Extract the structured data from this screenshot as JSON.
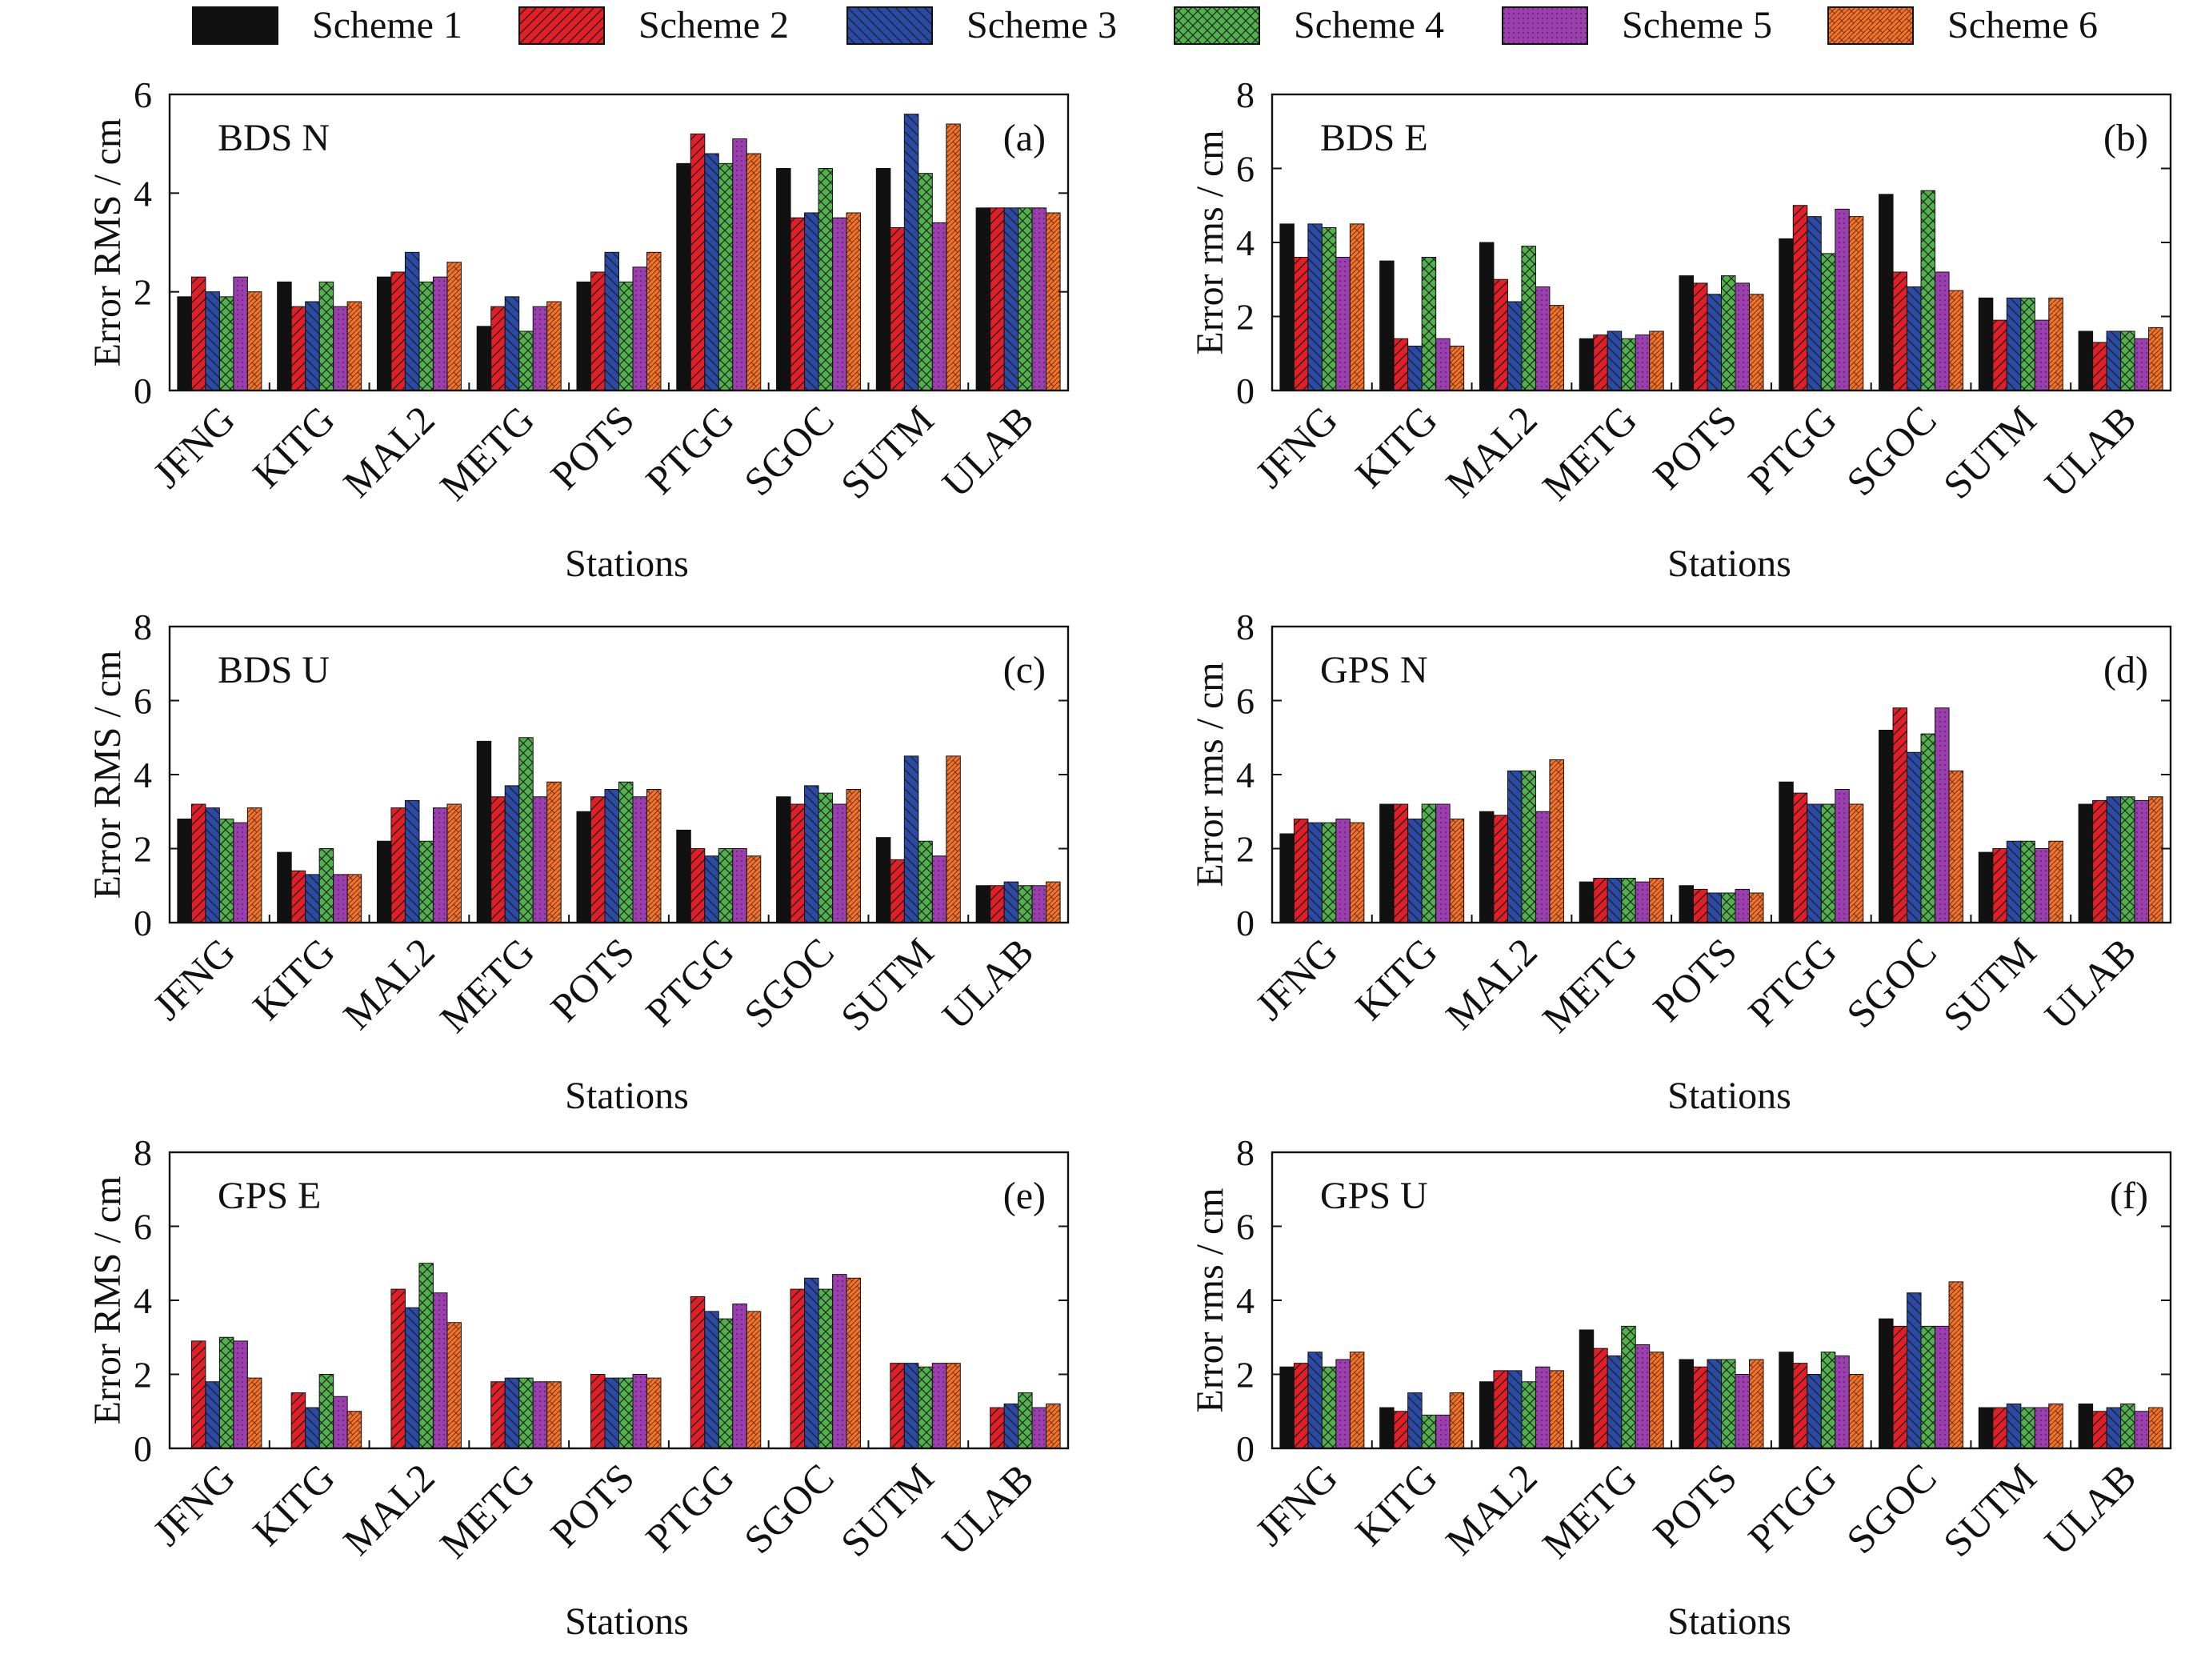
{
  "stations": [
    "JFNG",
    "KITG",
    "MAL2",
    "METG",
    "POTS",
    "PTGG",
    "SGOC",
    "SUTM",
    "ULAB"
  ],
  "legend": [
    {
      "name": "Scheme 1",
      "color": "#111111",
      "pattern": "solid"
    },
    {
      "name": "Scheme 2",
      "color": "#e41e26",
      "pattern": "hatch-diagonal-right"
    },
    {
      "name": "Scheme 3",
      "color": "#2a4aa8",
      "pattern": "hatch-diagonal-left"
    },
    {
      "name": "Scheme 4",
      "color": "#4fb24a",
      "pattern": "crosshatch"
    },
    {
      "name": "Scheme 5",
      "color": "#9b3fae",
      "pattern": "dots"
    },
    {
      "name": "Scheme 6",
      "color": "#f0752a",
      "pattern": "brick"
    }
  ],
  "chart_data": [
    {
      "type": "bar",
      "panel_label": "(a)",
      "title": "BDS N",
      "xlabel": "Stations",
      "ylabel": "Error RMS / cm",
      "ylim": [
        0,
        6
      ],
      "yticks": [
        "0",
        "2",
        "4",
        "6"
      ],
      "categories": [
        "JFNG",
        "KITG",
        "MAL2",
        "METG",
        "POTS",
        "PTGG",
        "SGOC",
        "SUTM",
        "ULAB"
      ],
      "series": [
        {
          "name": "Scheme 1",
          "values": [
            1.9,
            2.2,
            2.3,
            1.3,
            2.2,
            4.6,
            4.5,
            4.5,
            3.7
          ]
        },
        {
          "name": "Scheme 2",
          "values": [
            2.3,
            1.7,
            2.4,
            1.7,
            2.4,
            5.2,
            3.5,
            3.3,
            3.7
          ]
        },
        {
          "name": "Scheme 3",
          "values": [
            2.0,
            1.8,
            2.8,
            1.9,
            2.8,
            4.8,
            3.6,
            5.6,
            3.7
          ]
        },
        {
          "name": "Scheme 4",
          "values": [
            1.9,
            2.2,
            2.2,
            1.2,
            2.2,
            4.6,
            4.5,
            4.4,
            3.7
          ]
        },
        {
          "name": "Scheme 5",
          "values": [
            2.3,
            1.7,
            2.3,
            1.7,
            2.5,
            5.1,
            3.5,
            3.4,
            3.7
          ]
        },
        {
          "name": "Scheme 6",
          "values": [
            2.0,
            1.8,
            2.6,
            1.8,
            2.8,
            4.8,
            3.6,
            5.4,
            3.6
          ]
        }
      ]
    },
    {
      "type": "bar",
      "panel_label": "(b)",
      "title": "BDS E",
      "xlabel": "Stations",
      "ylabel": "Error rms / cm",
      "ylim": [
        0,
        8
      ],
      "yticks": [
        "0",
        "2",
        "4",
        "6",
        "8"
      ],
      "categories": [
        "JFNG",
        "KITG",
        "MAL2",
        "METG",
        "POTS",
        "PTGG",
        "SGOC",
        "SUTM",
        "ULAB"
      ],
      "series": [
        {
          "name": "Scheme 1",
          "values": [
            4.5,
            3.5,
            4.0,
            1.4,
            3.1,
            4.1,
            5.3,
            2.5,
            1.6
          ]
        },
        {
          "name": "Scheme 2",
          "values": [
            3.6,
            1.4,
            3.0,
            1.5,
            2.9,
            5.0,
            3.2,
            1.9,
            1.3
          ]
        },
        {
          "name": "Scheme 3",
          "values": [
            4.5,
            1.2,
            2.4,
            1.6,
            2.6,
            4.7,
            2.8,
            2.5,
            1.6
          ]
        },
        {
          "name": "Scheme 4",
          "values": [
            4.4,
            3.6,
            3.9,
            1.4,
            3.1,
            3.7,
            5.4,
            2.5,
            1.6
          ]
        },
        {
          "name": "Scheme 5",
          "values": [
            3.6,
            1.4,
            2.8,
            1.5,
            2.9,
            4.9,
            3.2,
            1.9,
            1.4
          ]
        },
        {
          "name": "Scheme 6",
          "values": [
            4.5,
            1.2,
            2.3,
            1.6,
            2.6,
            4.7,
            2.7,
            2.5,
            1.7
          ]
        }
      ]
    },
    {
      "type": "bar",
      "panel_label": "(c)",
      "title": "BDS U",
      "xlabel": "Stations",
      "ylabel": "Error RMS / cm",
      "ylim": [
        0,
        8
      ],
      "yticks": [
        "0",
        "2",
        "4",
        "6",
        "8"
      ],
      "categories": [
        "JFNG",
        "KITG",
        "MAL2",
        "METG",
        "POTS",
        "PTGG",
        "SGOC",
        "SUTM",
        "ULAB"
      ],
      "series": [
        {
          "name": "Scheme 1",
          "values": [
            2.8,
            1.9,
            2.2,
            4.9,
            3.0,
            2.5,
            3.4,
            2.3,
            1.0
          ]
        },
        {
          "name": "Scheme 2",
          "values": [
            3.2,
            1.4,
            3.1,
            3.4,
            3.4,
            2.0,
            3.2,
            1.7,
            1.0
          ]
        },
        {
          "name": "Scheme 3",
          "values": [
            3.1,
            1.3,
            3.3,
            3.7,
            3.6,
            1.8,
            3.7,
            4.5,
            1.1
          ]
        },
        {
          "name": "Scheme 4",
          "values": [
            2.8,
            2.0,
            2.2,
            5.0,
            3.8,
            2.0,
            3.5,
            2.2,
            1.0
          ]
        },
        {
          "name": "Scheme 5",
          "values": [
            2.7,
            1.3,
            3.1,
            3.4,
            3.4,
            2.0,
            3.2,
            1.8,
            1.0
          ]
        },
        {
          "name": "Scheme 6",
          "values": [
            3.1,
            1.3,
            3.2,
            3.8,
            3.6,
            1.8,
            3.6,
            4.5,
            1.1
          ]
        }
      ]
    },
    {
      "type": "bar",
      "panel_label": "(d)",
      "title": "GPS N",
      "xlabel": "Stations",
      "ylabel": "Error rms / cm",
      "ylim": [
        0,
        8
      ],
      "yticks": [
        "0",
        "2",
        "4",
        "6",
        "8"
      ],
      "categories": [
        "JFNG",
        "KITG",
        "MAL2",
        "METG",
        "POTS",
        "PTGG",
        "SGOC",
        "SUTM",
        "ULAB"
      ],
      "series": [
        {
          "name": "Scheme 1",
          "values": [
            2.4,
            3.2,
            3.0,
            1.1,
            1.0,
            3.8,
            5.2,
            1.9,
            3.2
          ]
        },
        {
          "name": "Scheme 2",
          "values": [
            2.8,
            3.2,
            2.9,
            1.2,
            0.9,
            3.5,
            5.8,
            2.0,
            3.3
          ]
        },
        {
          "name": "Scheme 3",
          "values": [
            2.7,
            2.8,
            4.1,
            1.2,
            0.8,
            3.2,
            4.6,
            2.2,
            3.4
          ]
        },
        {
          "name": "Scheme 4",
          "values": [
            2.7,
            3.2,
            4.1,
            1.2,
            0.8,
            3.2,
            5.1,
            2.2,
            3.4
          ]
        },
        {
          "name": "Scheme 5",
          "values": [
            2.8,
            3.2,
            3.0,
            1.1,
            0.9,
            3.6,
            5.8,
            2.0,
            3.3
          ]
        },
        {
          "name": "Scheme 6",
          "values": [
            2.7,
            2.8,
            4.4,
            1.2,
            0.8,
            3.2,
            4.1,
            2.2,
            3.4
          ]
        }
      ]
    },
    {
      "type": "bar",
      "panel_label": "(e)",
      "title": "GPS E",
      "xlabel": "Stations",
      "ylabel": "Error RMS / cm",
      "ylim": [
        0,
        8
      ],
      "yticks": [
        "0",
        "2",
        "4",
        "6",
        "8"
      ],
      "categories": [
        "JFNG",
        "KITG",
        "MAL2",
        "METG",
        "POTS",
        "PTGG",
        "SGOC",
        "SUTM",
        "ULAB"
      ],
      "series": [
        {
          "name": "Scheme 1",
          "values": [
            0.0,
            0.0,
            0.0,
            0.0,
            0.0,
            0.0,
            0.0,
            0.0,
            0.0
          ]
        },
        {
          "name": "Scheme 2",
          "values": [
            2.9,
            1.5,
            4.3,
            1.8,
            2.0,
            4.1,
            4.3,
            2.3,
            1.1
          ]
        },
        {
          "name": "Scheme 3",
          "values": [
            1.8,
            1.1,
            3.8,
            1.9,
            1.9,
            3.7,
            4.6,
            2.3,
            1.2
          ]
        },
        {
          "name": "Scheme 4",
          "values": [
            3.0,
            2.0,
            5.0,
            1.9,
            1.9,
            3.5,
            4.3,
            2.2,
            1.5
          ]
        },
        {
          "name": "Scheme 5",
          "values": [
            2.9,
            1.4,
            4.2,
            1.8,
            2.0,
            3.9,
            4.7,
            2.3,
            1.1
          ]
        },
        {
          "name": "Scheme 6",
          "values": [
            1.9,
            1.0,
            3.4,
            1.8,
            1.9,
            3.7,
            4.6,
            2.3,
            1.2
          ]
        }
      ]
    },
    {
      "type": "bar",
      "panel_label": "(f)",
      "title": "GPS U",
      "xlabel": "Stations",
      "ylabel": "Error rms / cm",
      "ylim": [
        0,
        8
      ],
      "yticks": [
        "0",
        "2",
        "4",
        "6",
        "8"
      ],
      "categories": [
        "JFNG",
        "KITG",
        "MAL2",
        "METG",
        "POTS",
        "PTGG",
        "SGOC",
        "SUTM",
        "ULAB"
      ],
      "series": [
        {
          "name": "Scheme 1",
          "values": [
            2.2,
            1.1,
            1.8,
            3.2,
            2.4,
            2.6,
            3.5,
            1.1,
            1.2
          ]
        },
        {
          "name": "Scheme 2",
          "values": [
            2.3,
            1.0,
            2.1,
            2.7,
            2.2,
            2.3,
            3.3,
            1.1,
            1.0
          ]
        },
        {
          "name": "Scheme 3",
          "values": [
            2.6,
            1.5,
            2.1,
            2.5,
            2.4,
            2.0,
            4.2,
            1.2,
            1.1
          ]
        },
        {
          "name": "Scheme 4",
          "values": [
            2.2,
            0.9,
            1.8,
            3.3,
            2.4,
            2.6,
            3.3,
            1.1,
            1.2
          ]
        },
        {
          "name": "Scheme 5",
          "values": [
            2.4,
            0.9,
            2.2,
            2.8,
            2.0,
            2.5,
            3.3,
            1.1,
            1.0
          ]
        },
        {
          "name": "Scheme 6",
          "values": [
            2.6,
            1.5,
            2.1,
            2.6,
            2.4,
            2.0,
            4.5,
            1.2,
            1.1
          ]
        }
      ]
    }
  ]
}
